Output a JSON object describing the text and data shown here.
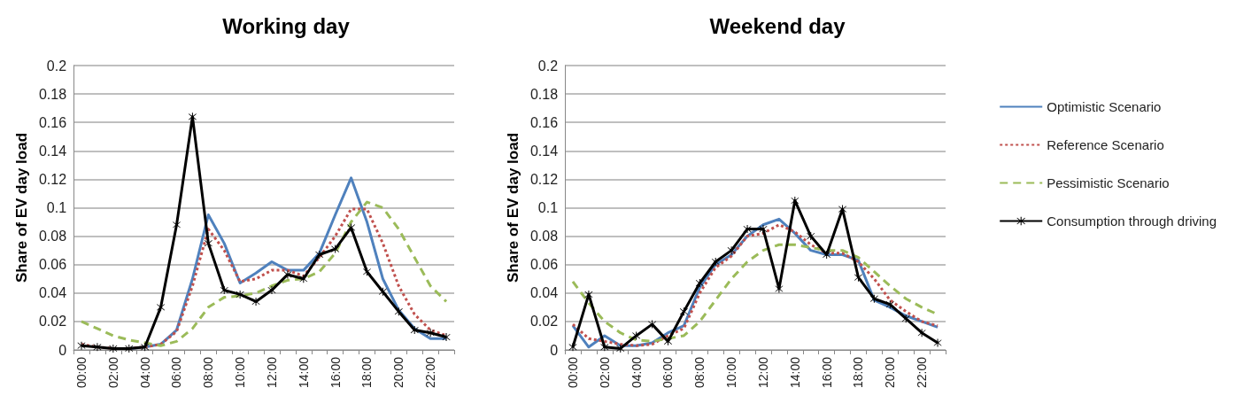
{
  "chart_data": [
    {
      "type": "line",
      "title": "Working day",
      "ylabel": "Share of EV day load",
      "categories": [
        "00:00",
        null,
        "02:00",
        null,
        "04:00",
        null,
        "06:00",
        null,
        "08:00",
        null,
        "10:00",
        null,
        "12:00",
        null,
        "14:00",
        null,
        "16:00",
        null,
        "18:00",
        null,
        "20:00",
        null,
        "22:00",
        null
      ],
      "ylim": [
        0,
        0.2
      ],
      "yticks": [
        0,
        0.02,
        0.04,
        0.06,
        0.08,
        0.1,
        0.12,
        0.14,
        0.16,
        0.18,
        0.2
      ],
      "grid": "y",
      "legend": false,
      "series": [
        {
          "color": "#4f81bd",
          "line_style": "solid",
          "marker": "none",
          "values": [
            null,
            null,
            null,
            0.001,
            0.002,
            0.004,
            0.014,
            0.05,
            0.095,
            0.075,
            0.047,
            0.054,
            0.062,
            0.056,
            0.056,
            0.068,
            0.095,
            0.121,
            0.09,
            0.05,
            0.028,
            0.015,
            0.008,
            0.008
          ]
        },
        {
          "color": "#c0504d",
          "line_style": "dotted",
          "marker": "none",
          "values": [
            0.004,
            0.002,
            0.001,
            0.001,
            0.002,
            0.004,
            0.013,
            0.045,
            0.085,
            0.07,
            0.048,
            0.05,
            0.056,
            0.056,
            0.052,
            0.065,
            0.08,
            0.099,
            0.099,
            0.075,
            0.045,
            0.025,
            0.014,
            0.01
          ]
        },
        {
          "color": "#9bbb59",
          "line_style": "dashed",
          "marker": "none",
          "values": [
            0.02,
            0.015,
            0.01,
            0.007,
            0.005,
            0.003,
            0.006,
            0.015,
            0.03,
            0.037,
            0.038,
            0.04,
            0.045,
            0.049,
            0.05,
            0.055,
            0.068,
            0.09,
            0.104,
            0.1,
            0.085,
            0.065,
            0.045,
            0.034
          ]
        },
        {
          "color": "#000000",
          "line_style": "solid",
          "marker": "cross",
          "values": [
            0.003,
            0.002,
            0.001,
            0.001,
            0.002,
            0.03,
            0.088,
            0.164,
            0.075,
            0.042,
            0.039,
            0.034,
            0.042,
            0.053,
            0.05,
            0.067,
            0.071,
            0.086,
            0.055,
            0.041,
            0.027,
            0.014,
            0.012,
            0.009
          ]
        }
      ]
    },
    {
      "type": "line",
      "title": "Weekend day",
      "ylabel": "Share of EV day load",
      "categories": [
        "00:00",
        null,
        "02:00",
        null,
        "04:00",
        null,
        "06:00",
        null,
        "08:00",
        null,
        "10:00",
        null,
        "12:00",
        null,
        "14:00",
        null,
        "16:00",
        null,
        "18:00",
        null,
        "20:00",
        null,
        "22:00",
        null
      ],
      "ylim": [
        0,
        0.2
      ],
      "yticks": [
        0,
        0.02,
        0.04,
        0.06,
        0.08,
        0.1,
        0.12,
        0.14,
        0.16,
        0.18,
        0.2
      ],
      "grid": "y",
      "legend": "right",
      "series": [
        {
          "name": "Optimistic Scenario",
          "color": "#4f81bd",
          "line_style": "solid",
          "marker": "none",
          "values": [
            0.017,
            0.002,
            0.01,
            0.003,
            0.003,
            0.005,
            0.012,
            0.017,
            0.044,
            0.06,
            0.067,
            0.08,
            0.088,
            0.092,
            0.082,
            0.07,
            0.067,
            0.067,
            0.063,
            0.035,
            0.03,
            0.024,
            0.02,
            0.016
          ]
        },
        {
          "name": "Reference Scenario",
          "color": "#c0504d",
          "line_style": "dotted",
          "marker": "none",
          "values": [
            0.018,
            0.008,
            0.006,
            0.004,
            0.003,
            0.004,
            0.01,
            0.015,
            0.04,
            0.058,
            0.066,
            0.08,
            0.082,
            0.088,
            0.083,
            0.074,
            0.068,
            0.068,
            0.062,
            0.05,
            0.035,
            0.027,
            0.02,
            0.017
          ]
        },
        {
          "name": "Pessimistic Scenario",
          "color": "#9bbb59",
          "line_style": "dashed",
          "marker": "none",
          "values": [
            0.048,
            0.033,
            0.02,
            0.012,
            0.007,
            0.006,
            0.008,
            0.01,
            0.02,
            0.035,
            0.05,
            0.062,
            0.07,
            0.074,
            0.074,
            0.072,
            0.07,
            0.07,
            0.065,
            0.055,
            0.045,
            0.036,
            0.03,
            0.025
          ]
        },
        {
          "name": "Consumption through driving",
          "color": "#000000",
          "line_style": "solid",
          "marker": "cross",
          "values": [
            0.002,
            0.039,
            0.002,
            0.001,
            0.01,
            0.018,
            0.006,
            0.027,
            0.047,
            0.062,
            0.07,
            0.085,
            0.085,
            0.043,
            0.105,
            0.08,
            0.067,
            0.099,
            0.051,
            0.036,
            0.032,
            0.022,
            0.012,
            0.005
          ]
        }
      ]
    }
  ]
}
